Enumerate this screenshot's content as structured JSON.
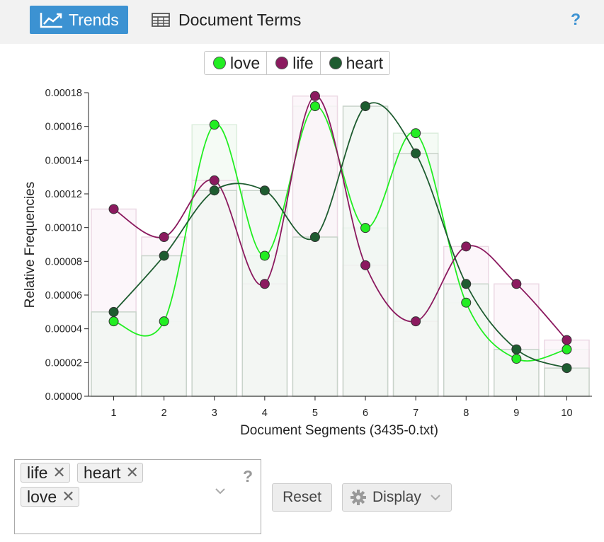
{
  "tabs": {
    "trends_label": "Trends",
    "document_terms_label": "Document Terms",
    "help_label": "?"
  },
  "chart_data": {
    "type": "line",
    "title": "",
    "xlabel": "Document Segments (3435-0.txt)",
    "ylabel": "Relative Frequencies",
    "categories": [
      "1",
      "2",
      "3",
      "4",
      "5",
      "6",
      "7",
      "8",
      "9",
      "10"
    ],
    "ylim": [
      0,
      0.00018
    ],
    "yticks": [
      "0.00000",
      "0.00002",
      "0.00004",
      "0.00006",
      "0.00008",
      "0.00010",
      "0.00012",
      "0.00014",
      "0.00016",
      "0.00018"
    ],
    "legend_position": "top-center",
    "grid": false,
    "series": [
      {
        "name": "love",
        "color": "#22ee22",
        "values": [
          4.44e-05,
          4.44e-05,
          0.000161,
          8.33e-05,
          0.000172,
          9.98e-05,
          0.000156,
          5.55e-05,
          2.22e-05,
          2.78e-05
        ]
      },
      {
        "name": "life",
        "color": "#8b1a5f",
        "values": [
          0.000111,
          9.44e-05,
          0.000128,
          6.66e-05,
          0.000178,
          7.77e-05,
          4.44e-05,
          8.88e-05,
          6.66e-05,
          3.33e-05
        ]
      },
      {
        "name": "heart",
        "color": "#1e5c30",
        "values": [
          5e-05,
          8.33e-05,
          0.000122,
          0.000122,
          9.44e-05,
          0.000172,
          0.000144,
          6.66e-05,
          2.78e-05,
          1.67e-05
        ]
      }
    ]
  },
  "terms": {
    "tags": [
      "life",
      "heart",
      "love"
    ],
    "remove_glyph": "✕",
    "help_label": "?"
  },
  "controls": {
    "reset_label": "Reset",
    "display_label": "Display"
  }
}
